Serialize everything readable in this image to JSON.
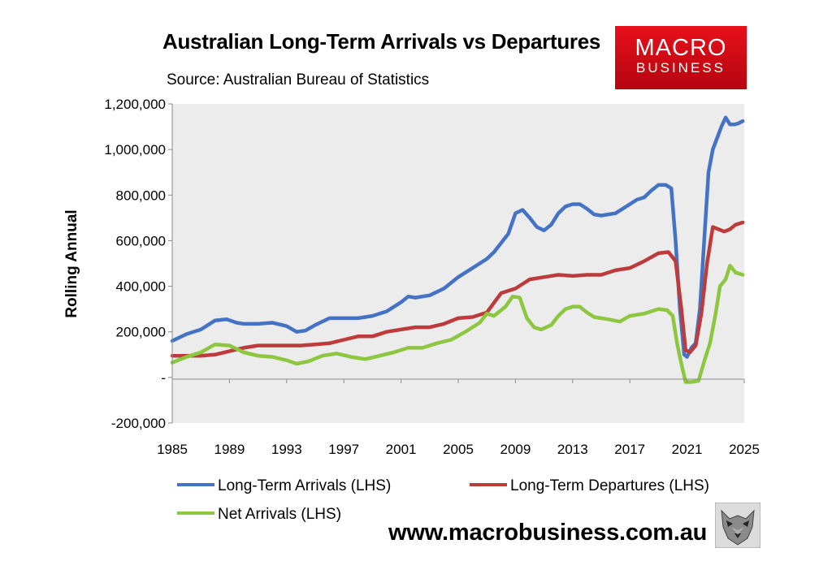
{
  "header": {
    "title": "Australian Long-Term Arrivals vs Departures",
    "subtitle": "Source: Australian Bureau of Statistics",
    "logo_line1": "MACRO",
    "logo_line2": "BUSINESS"
  },
  "footer": {
    "url": "www.macrobusiness.com.au"
  },
  "colors": {
    "arrivals": "#4472c4",
    "departures": "#be3b3b",
    "net": "#8dc63f",
    "plot_bg": "#ececec",
    "logo_red": "#d40f17"
  },
  "chart_data": {
    "type": "line",
    "title": "Australian Long-Term Arrivals vs Departures",
    "subtitle": "Source: Australian Bureau of Statistics",
    "xlabel": "",
    "ylabel": "Rolling Annual",
    "xlim": [
      1985,
      2025
    ],
    "ylim": [
      -200000,
      1200000
    ],
    "x_ticks": [
      "1985",
      "1989",
      "1993",
      "1997",
      "2001",
      "2005",
      "2009",
      "2013",
      "2017",
      "2021",
      "2025"
    ],
    "y_ticks": [
      "1,200,000",
      "1,000,000",
      "800,000",
      "600,000",
      "400,000",
      "200,000",
      "-",
      "-200,000"
    ],
    "y_tick_values": [
      1200000,
      1000000,
      800000,
      600000,
      400000,
      200000,
      0,
      -200000
    ],
    "grid": false,
    "legend": "bottom",
    "series": [
      {
        "name": "Long-Term Arrivals (LHS)",
        "color": "#4472c4",
        "x": [
          1985,
          1986,
          1987,
          1988,
          1988.8,
          1989.5,
          1990,
          1991,
          1992,
          1993,
          1993.7,
          1994.3,
          1995,
          1996,
          1997,
          1998,
          1999,
          2000,
          2001,
          2001.5,
          2002,
          2003,
          2004,
          2005,
          2006,
          2007,
          2007.5,
          2008,
          2008.5,
          2009,
          2009.5,
          2010,
          2010.5,
          2011,
          2011.5,
          2012,
          2012.5,
          2013,
          2013.5,
          2014,
          2014.5,
          2015,
          2016,
          2016.5,
          2017,
          2017.5,
          2018,
          2018.5,
          2019,
          2019.5,
          2019.9,
          2020.2,
          2020.5,
          2020.8,
          2021,
          2021.3,
          2021.6,
          2021.9,
          2022.2,
          2022.5,
          2022.8,
          2023.1,
          2023.4,
          2023.7,
          2024,
          2024.3,
          2024.6,
          2024.9
        ],
        "y": [
          160000,
          190000,
          210000,
          250000,
          255000,
          240000,
          235000,
          235000,
          240000,
          225000,
          200000,
          205000,
          230000,
          260000,
          260000,
          260000,
          270000,
          290000,
          330000,
          355000,
          350000,
          360000,
          390000,
          440000,
          480000,
          520000,
          550000,
          590000,
          630000,
          720000,
          735000,
          700000,
          660000,
          645000,
          670000,
          720000,
          750000,
          760000,
          760000,
          740000,
          715000,
          710000,
          720000,
          740000,
          760000,
          780000,
          790000,
          820000,
          845000,
          845000,
          830000,
          600000,
          300000,
          100000,
          90000,
          130000,
          150000,
          300000,
          600000,
          900000,
          1000000,
          1050000,
          1100000,
          1140000,
          1110000,
          1110000,
          1115000,
          1125000
        ]
      },
      {
        "name": "Long-Term Departures (LHS)",
        "color": "#be3b3b",
        "x": [
          1985,
          1986,
          1987,
          1988,
          1989,
          1990,
          1991,
          1992,
          1993,
          1994,
          1995,
          1996,
          1997,
          1998,
          1999,
          2000,
          2001,
          2002,
          2003,
          2004,
          2005,
          2006,
          2007,
          2008,
          2009,
          2010,
          2011,
          2012,
          2013,
          2014,
          2015,
          2016,
          2017,
          2018,
          2019,
          2019.7,
          2020.2,
          2020.6,
          2020.9,
          2021.2,
          2021.6,
          2022,
          2022.4,
          2022.8,
          2023.2,
          2023.6,
          2024,
          2024.4,
          2024.9
        ],
        "y": [
          95000,
          95000,
          95000,
          100000,
          115000,
          130000,
          140000,
          140000,
          140000,
          140000,
          145000,
          150000,
          165000,
          180000,
          180000,
          200000,
          210000,
          220000,
          220000,
          235000,
          260000,
          265000,
          285000,
          370000,
          390000,
          430000,
          440000,
          450000,
          445000,
          450000,
          450000,
          470000,
          480000,
          510000,
          545000,
          550000,
          510000,
          300000,
          120000,
          110000,
          140000,
          280000,
          500000,
          660000,
          650000,
          640000,
          650000,
          670000,
          680000
        ]
      },
      {
        "name": "Net Arrivals (LHS)",
        "color": "#8dc63f",
        "x": [
          1985,
          1986,
          1987,
          1988,
          1989,
          1990,
          1991,
          1992,
          1993,
          1993.7,
          1994.5,
          1995.5,
          1996.5,
          1997.5,
          1998.5,
          1999.5,
          2000.5,
          2001.5,
          2002.5,
          2003.5,
          2004.5,
          2005.5,
          2006.5,
          2007,
          2007.5,
          2008.3,
          2008.8,
          2009.3,
          2009.8,
          2010.3,
          2010.8,
          2011.5,
          2012,
          2012.5,
          2013,
          2013.5,
          2014,
          2014.5,
          2015.5,
          2016.3,
          2017,
          2017.5,
          2018,
          2018.5,
          2019,
          2019.6,
          2020,
          2020.3,
          2020.6,
          2020.9,
          2021.3,
          2021.8,
          2022.2,
          2022.6,
          2023,
          2023.3,
          2023.7,
          2024,
          2024.4,
          2024.9
        ],
        "y": [
          65000,
          90000,
          110000,
          145000,
          140000,
          110000,
          95000,
          90000,
          75000,
          60000,
          70000,
          95000,
          105000,
          90000,
          80000,
          95000,
          110000,
          130000,
          130000,
          150000,
          165000,
          200000,
          240000,
          280000,
          270000,
          310000,
          355000,
          350000,
          260000,
          220000,
          210000,
          230000,
          270000,
          300000,
          310000,
          310000,
          285000,
          265000,
          255000,
          245000,
          270000,
          275000,
          280000,
          290000,
          300000,
          295000,
          270000,
          150000,
          60000,
          -20000,
          -20000,
          -15000,
          70000,
          150000,
          280000,
          400000,
          430000,
          490000,
          460000,
          450000
        ]
      }
    ]
  }
}
